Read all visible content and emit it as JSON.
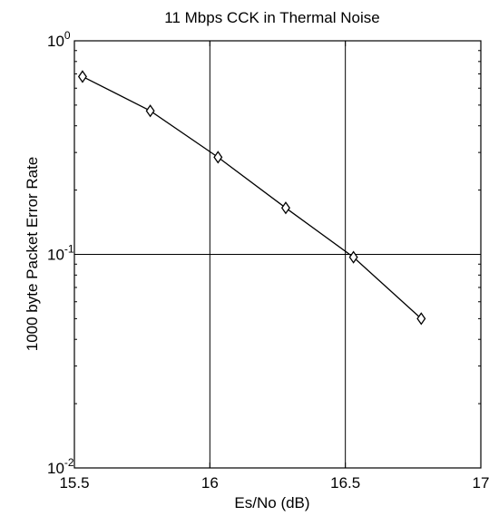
{
  "chart_data": {
    "type": "line",
    "title": "11 Mbps CCK in Thermal Noise",
    "xlabel": "Es/No (dB)",
    "ylabel": "1000 byte Packet Error Rate",
    "xlim": [
      15.5,
      17
    ],
    "ylim": [
      0.01,
      1
    ],
    "yscale": "log",
    "grid": true,
    "x_ticks": [
      "15.5",
      "16",
      "16.5",
      "17"
    ],
    "y_ticks": [
      {
        "base": "10",
        "exp": "0"
      },
      {
        "base": "10",
        "exp": "-1"
      },
      {
        "base": "10",
        "exp": "-2"
      }
    ],
    "marker": "diamond",
    "line_color": "#000000",
    "series": [
      {
        "x": [
          15.53,
          15.78,
          16.03,
          16.28,
          16.53,
          16.78
        ],
        "y": [
          0.68,
          0.47,
          0.285,
          0.165,
          0.097,
          0.05
        ]
      }
    ]
  }
}
